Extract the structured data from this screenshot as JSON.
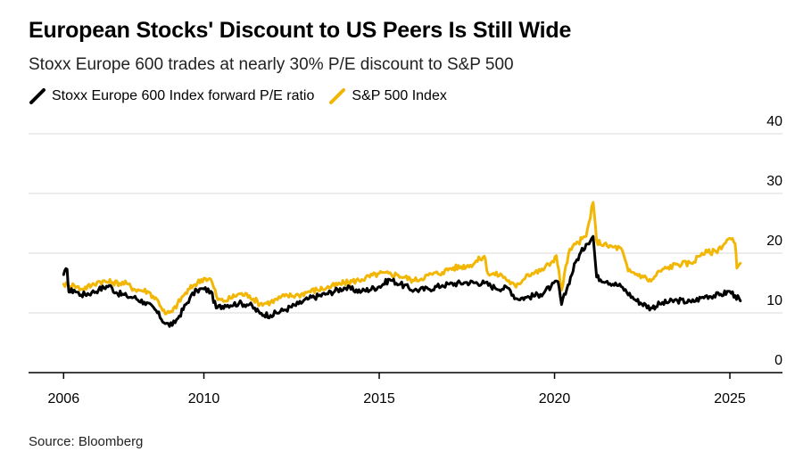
{
  "header": {
    "title": "European Stocks' Discount to US Peers Is Still Wide",
    "subtitle": "Stoxx Europe 600 trades at nearly 30% P/E discount to S&P 500"
  },
  "footer": {
    "source": "Source: Bloomberg"
  },
  "colors": {
    "europe": "#000000",
    "sp500": "#f2b705",
    "grid": "#d9d9d9",
    "axis": "#000000"
  },
  "chart_data": {
    "type": "line",
    "title": "European Stocks' Discount to US Peers Is Still Wide",
    "subtitle": "Stoxx Europe 600 trades at nearly 30% P/E discount to S&P 500",
    "x_ticks": [
      2006,
      2010,
      2015,
      2020,
      2025
    ],
    "y_ticks": [
      0,
      10,
      20,
      30,
      40
    ],
    "xlim": [
      2005.0,
      2026.5
    ],
    "ylim": [
      0,
      40
    ],
    "y_axis_position": "right",
    "grid": true,
    "legend_position": "top-left",
    "series": [
      {
        "name": "Stoxx Europe 600 Index forward P/E ratio",
        "color": "#000000",
        "points": [
          [
            2006.0,
            16.4
          ],
          [
            2006.1,
            17.3
          ],
          [
            2006.15,
            13.5
          ],
          [
            2006.3,
            13.8
          ],
          [
            2006.5,
            13.0
          ],
          [
            2006.8,
            13.4
          ],
          [
            2007.0,
            13.9
          ],
          [
            2007.3,
            14.6
          ],
          [
            2007.5,
            13.4
          ],
          [
            2007.8,
            12.8
          ],
          [
            2008.0,
            12.6
          ],
          [
            2008.3,
            11.8
          ],
          [
            2008.6,
            10.6
          ],
          [
            2008.9,
            8.2
          ],
          [
            2009.1,
            7.9
          ],
          [
            2009.3,
            9.5
          ],
          [
            2009.6,
            12.5
          ],
          [
            2009.8,
            13.8
          ],
          [
            2010.0,
            14.0
          ],
          [
            2010.2,
            13.6
          ],
          [
            2010.35,
            10.8
          ],
          [
            2010.6,
            11.3
          ],
          [
            2011.0,
            11.6
          ],
          [
            2011.3,
            11.4
          ],
          [
            2011.6,
            9.9
          ],
          [
            2011.9,
            9.6
          ],
          [
            2012.3,
            10.5
          ],
          [
            2012.7,
            11.5
          ],
          [
            2013.0,
            12.4
          ],
          [
            2013.5,
            13.2
          ],
          [
            2014.0,
            14.2
          ],
          [
            2014.5,
            13.6
          ],
          [
            2015.0,
            14.4
          ],
          [
            2015.3,
            15.6
          ],
          [
            2015.6,
            14.8
          ],
          [
            2016.0,
            13.8
          ],
          [
            2016.4,
            14.0
          ],
          [
            2016.8,
            14.6
          ],
          [
            2017.0,
            14.8
          ],
          [
            2017.5,
            15.1
          ],
          [
            2018.0,
            15.0
          ],
          [
            2018.3,
            14.2
          ],
          [
            2018.7,
            14.1
          ],
          [
            2018.9,
            12.4
          ],
          [
            2019.2,
            12.6
          ],
          [
            2019.6,
            13.1
          ],
          [
            2019.9,
            14.4
          ],
          [
            2020.1,
            15.2
          ],
          [
            2020.2,
            11.4
          ],
          [
            2020.35,
            14.0
          ],
          [
            2020.6,
            18.5
          ],
          [
            2020.9,
            21.5
          ],
          [
            2021.1,
            22.8
          ],
          [
            2021.2,
            16.0
          ],
          [
            2021.5,
            15.3
          ],
          [
            2021.9,
            14.4
          ],
          [
            2022.3,
            12.2
          ],
          [
            2022.75,
            10.8
          ],
          [
            2023.0,
            11.5
          ],
          [
            2023.5,
            12.1
          ],
          [
            2023.9,
            11.8
          ],
          [
            2024.3,
            12.8
          ],
          [
            2024.7,
            13.0
          ],
          [
            2025.0,
            13.6
          ],
          [
            2025.15,
            12.9
          ],
          [
            2025.3,
            12.0
          ]
        ]
      },
      {
        "name": "S&P 500 Index",
        "color": "#f2b705",
        "points": [
          [
            2006.0,
            14.8
          ],
          [
            2006.3,
            14.6
          ],
          [
            2006.5,
            14.0
          ],
          [
            2006.8,
            14.6
          ],
          [
            2007.0,
            15.3
          ],
          [
            2007.4,
            15.1
          ],
          [
            2007.8,
            14.9
          ],
          [
            2008.0,
            14.0
          ],
          [
            2008.4,
            13.6
          ],
          [
            2008.7,
            12.0
          ],
          [
            2008.9,
            9.8
          ],
          [
            2009.1,
            10.2
          ],
          [
            2009.4,
            12.8
          ],
          [
            2009.7,
            14.6
          ],
          [
            2010.0,
            15.8
          ],
          [
            2010.2,
            15.6
          ],
          [
            2010.4,
            12.2
          ],
          [
            2010.6,
            12.0
          ],
          [
            2011.0,
            13.2
          ],
          [
            2011.3,
            12.9
          ],
          [
            2011.6,
            11.5
          ],
          [
            2011.9,
            11.8
          ],
          [
            2012.3,
            12.8
          ],
          [
            2012.7,
            13.0
          ],
          [
            2013.0,
            13.6
          ],
          [
            2013.5,
            14.2
          ],
          [
            2014.0,
            15.0
          ],
          [
            2014.5,
            15.6
          ],
          [
            2015.0,
            16.6
          ],
          [
            2015.5,
            16.4
          ],
          [
            2016.0,
            15.4
          ],
          [
            2016.4,
            16.3
          ],
          [
            2016.8,
            16.8
          ],
          [
            2017.0,
            17.4
          ],
          [
            2017.6,
            18.0
          ],
          [
            2018.0,
            19.5
          ],
          [
            2018.1,
            16.6
          ],
          [
            2018.5,
            16.3
          ],
          [
            2018.9,
            14.3
          ],
          [
            2019.2,
            16.4
          ],
          [
            2019.6,
            17.0
          ],
          [
            2019.9,
            18.4
          ],
          [
            2020.05,
            19.6
          ],
          [
            2020.2,
            13.8
          ],
          [
            2020.4,
            20.0
          ],
          [
            2020.6,
            21.5
          ],
          [
            2020.9,
            22.8
          ],
          [
            2021.1,
            28.5
          ],
          [
            2021.2,
            22.0
          ],
          [
            2021.5,
            21.2
          ],
          [
            2021.9,
            20.8
          ],
          [
            2022.1,
            17.0
          ],
          [
            2022.5,
            16.2
          ],
          [
            2022.75,
            15.3
          ],
          [
            2023.0,
            17.0
          ],
          [
            2023.5,
            18.2
          ],
          [
            2023.9,
            18.3
          ],
          [
            2024.2,
            20.0
          ],
          [
            2024.6,
            20.3
          ],
          [
            2025.0,
            22.5
          ],
          [
            2025.15,
            21.6
          ],
          [
            2025.2,
            17.5
          ],
          [
            2025.3,
            18.3
          ]
        ]
      }
    ]
  }
}
